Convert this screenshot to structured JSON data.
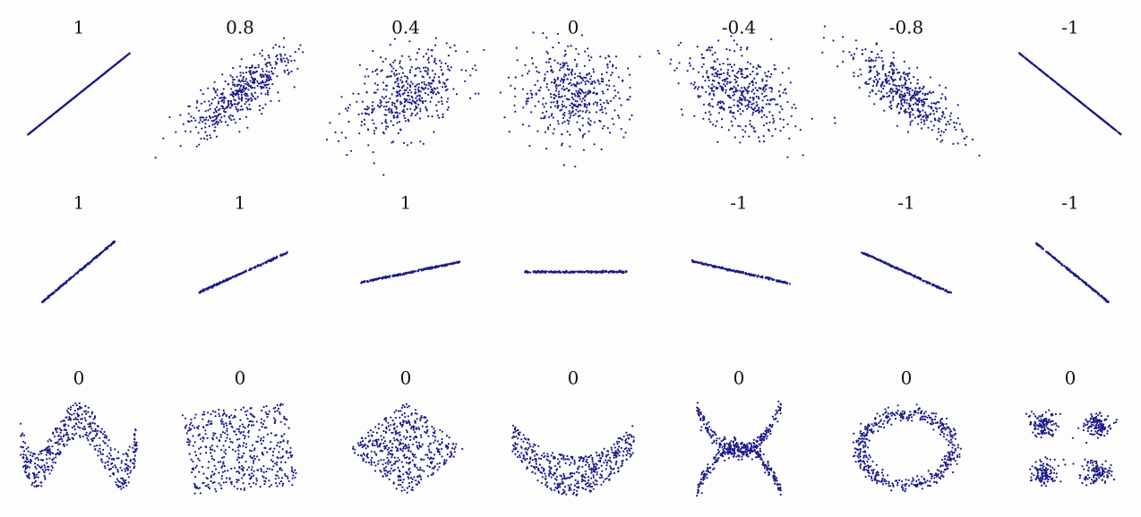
{
  "panels": [
    [
      {
        "label": "1"
      },
      {
        "label": "0.8"
      },
      {
        "label": "0.4"
      },
      {
        "label": "0"
      },
      {
        "label": "-0.4"
      },
      {
        "label": "-0.8"
      },
      {
        "label": "-1"
      }
    ],
    [
      {
        "label": "1"
      },
      {
        "label": "1"
      },
      {
        "label": "1"
      },
      {
        "label": null
      },
      {
        "label": "-1"
      },
      {
        "label": "-1"
      },
      {
        "label": "-1"
      }
    ],
    [
      {
        "label": "0"
      },
      {
        "label": "0"
      },
      {
        "label": "0"
      },
      {
        "label": "0"
      },
      {
        "label": "0"
      },
      {
        "label": "0"
      },
      {
        "label": "0"
      }
    ]
  ]
}
